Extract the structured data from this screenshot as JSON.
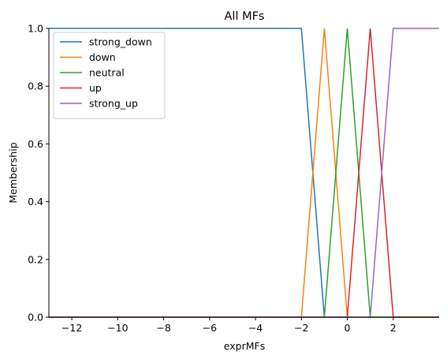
{
  "chart_data": {
    "type": "line",
    "title": "All MFs",
    "xlabel": "exprMFs",
    "ylabel": "Membership",
    "xlim": [
      -13,
      4
    ],
    "ylim": [
      0,
      1.0
    ],
    "xticks": [
      -12,
      -10,
      -8,
      -6,
      -4,
      -2,
      0,
      2
    ],
    "yticks": [
      0.0,
      0.2,
      0.4,
      0.6,
      0.8,
      1.0
    ],
    "xtick_labels": [
      "−12",
      "−10",
      "−8",
      "−6",
      "−4",
      "−2",
      "0",
      "2"
    ],
    "ytick_labels": [
      "0.0",
      "0.2",
      "0.4",
      "0.6",
      "0.8",
      "1.0"
    ],
    "grid": false,
    "legend_position": "top-left",
    "series": [
      {
        "name": "strong_down",
        "color": "#1f77b4",
        "x": [
          -13,
          -2,
          -1,
          4
        ],
        "y": [
          1,
          1,
          0,
          0
        ]
      },
      {
        "name": "down",
        "color": "#ff7f0e",
        "x": [
          -13,
          -2,
          -1,
          0,
          4
        ],
        "y": [
          0,
          0,
          1,
          0,
          0
        ]
      },
      {
        "name": "neutral",
        "color": "#2ca02c",
        "x": [
          -13,
          -1,
          0,
          1,
          4
        ],
        "y": [
          0,
          0,
          1,
          0,
          0
        ]
      },
      {
        "name": "up",
        "color": "#d62728",
        "x": [
          -13,
          0,
          1,
          2,
          4
        ],
        "y": [
          0,
          0,
          1,
          0,
          0
        ]
      },
      {
        "name": "strong_up",
        "color": "#9467bd",
        "x": [
          -13,
          1,
          2,
          4
        ],
        "y": [
          0,
          0,
          1,
          1
        ]
      }
    ]
  }
}
